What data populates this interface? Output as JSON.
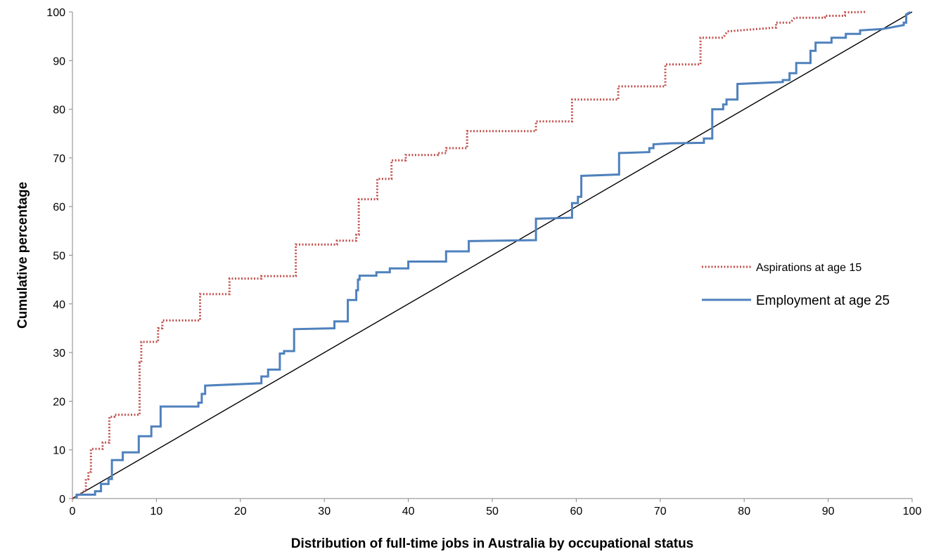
{
  "chart_data": {
    "type": "line",
    "xlabel": "Distribution of full-time jobs in Australia by occupational status",
    "ylabel": "Cumulative percentage",
    "xlim": [
      0,
      100
    ],
    "ylim": [
      0,
      100
    ],
    "x_ticks": [
      "0",
      "10",
      "20",
      "30",
      "40",
      "50",
      "60",
      "70",
      "80",
      "90",
      "100"
    ],
    "y_ticks": [
      "0",
      "10",
      "20",
      "30",
      "40",
      "50",
      "60",
      "70",
      "80",
      "90",
      "100"
    ],
    "legend_position": "right",
    "grid": false,
    "series": [
      {
        "name": "Aspirations at age 15",
        "color": "#c0504d",
        "style": "dotted",
        "points": [
          [
            0,
            0
          ],
          [
            1,
            1
          ],
          [
            1.6,
            1.8
          ],
          [
            1.6,
            4
          ],
          [
            1.9,
            4
          ],
          [
            1.9,
            5.5
          ],
          [
            2.2,
            5.5
          ],
          [
            2.2,
            10.2
          ],
          [
            3.6,
            10.2
          ],
          [
            3.6,
            11.5
          ],
          [
            4.4,
            11.5
          ],
          [
            4.4,
            16.8
          ],
          [
            5,
            16.8
          ],
          [
            5,
            17.2
          ],
          [
            8,
            17.2
          ],
          [
            8,
            28
          ],
          [
            8.2,
            28
          ],
          [
            8.2,
            32.2
          ],
          [
            10.2,
            32.2
          ],
          [
            10.2,
            35
          ],
          [
            10.7,
            35
          ],
          [
            10.7,
            36.6
          ],
          [
            15.2,
            36.6
          ],
          [
            15.2,
            42
          ],
          [
            18.7,
            42
          ],
          [
            18.7,
            45.2
          ],
          [
            22.5,
            45.2
          ],
          [
            22.5,
            45.7
          ],
          [
            26.6,
            45.7
          ],
          [
            26.6,
            52.2
          ],
          [
            31.5,
            52.2
          ],
          [
            31.5,
            53
          ],
          [
            33.8,
            53
          ],
          [
            33.8,
            54.2
          ],
          [
            34.1,
            54.2
          ],
          [
            34.1,
            61.5
          ],
          [
            36.3,
            61.5
          ],
          [
            36.3,
            65.7
          ],
          [
            38,
            65.7
          ],
          [
            38,
            69.5
          ],
          [
            39.7,
            69.5
          ],
          [
            39.7,
            70.6
          ],
          [
            43.5,
            70.6
          ],
          [
            43.5,
            71
          ],
          [
            44.5,
            71
          ],
          [
            44.5,
            72
          ],
          [
            47,
            72
          ],
          [
            47,
            75.5
          ],
          [
            55.2,
            75.5
          ],
          [
            55.2,
            77.5
          ],
          [
            59.5,
            77.5
          ],
          [
            59.5,
            82
          ],
          [
            65,
            82
          ],
          [
            65,
            84.7
          ],
          [
            70.6,
            84.7
          ],
          [
            70.6,
            89.2
          ],
          [
            74.8,
            89.2
          ],
          [
            74.8,
            94.7
          ],
          [
            77.5,
            94.7
          ],
          [
            78,
            96
          ],
          [
            83.8,
            96.8
          ],
          [
            83.8,
            97.8
          ],
          [
            85.5,
            97.8
          ],
          [
            86,
            98.8
          ],
          [
            89.6,
            98.8
          ],
          [
            89.6,
            99.2
          ],
          [
            92,
            99.2
          ],
          [
            92,
            99.9
          ],
          [
            94.4,
            100
          ]
        ]
      },
      {
        "name": "Employment at age 25",
        "color": "#4f81bd",
        "style": "solid",
        "points": [
          [
            0.5,
            0
          ],
          [
            0.5,
            0.8
          ],
          [
            2.7,
            0.8
          ],
          [
            2.7,
            1.5
          ],
          [
            3.4,
            1.5
          ],
          [
            3.4,
            3
          ],
          [
            4.3,
            3
          ],
          [
            4.3,
            4
          ],
          [
            4.7,
            4
          ],
          [
            4.7,
            7.9
          ],
          [
            6,
            7.9
          ],
          [
            6,
            9.5
          ],
          [
            7.9,
            9.5
          ],
          [
            7.9,
            12.8
          ],
          [
            9.4,
            12.8
          ],
          [
            9.4,
            14.8
          ],
          [
            10.5,
            14.8
          ],
          [
            10.5,
            18.9
          ],
          [
            15,
            18.9
          ],
          [
            15,
            19.7
          ],
          [
            15.4,
            19.7
          ],
          [
            15.4,
            21.5
          ],
          [
            15.8,
            21.5
          ],
          [
            15.8,
            23.2
          ],
          [
            22.5,
            23.7
          ],
          [
            22.5,
            25.1
          ],
          [
            23.3,
            25.1
          ],
          [
            23.3,
            26.5
          ],
          [
            24.7,
            26.5
          ],
          [
            24.7,
            29.8
          ],
          [
            25.2,
            29.8
          ],
          [
            25.2,
            30.3
          ],
          [
            26.4,
            30.3
          ],
          [
            26.4,
            34.8
          ],
          [
            31.2,
            35
          ],
          [
            31.2,
            36.4
          ],
          [
            32.8,
            36.4
          ],
          [
            32.8,
            40.8
          ],
          [
            33.8,
            40.8
          ],
          [
            33.8,
            42.8
          ],
          [
            34,
            42.8
          ],
          [
            34,
            45
          ],
          [
            34.2,
            45
          ],
          [
            34.2,
            45.8
          ],
          [
            36.2,
            45.8
          ],
          [
            36.2,
            46.5
          ],
          [
            37.8,
            46.5
          ],
          [
            37.8,
            47.3
          ],
          [
            40,
            47.3
          ],
          [
            40,
            48.7
          ],
          [
            44.5,
            48.7
          ],
          [
            44.5,
            50.8
          ],
          [
            47.2,
            50.8
          ],
          [
            47.2,
            52.9
          ],
          [
            55.2,
            53.1
          ],
          [
            55.2,
            57.5
          ],
          [
            59.5,
            57.7
          ],
          [
            59.5,
            60.7
          ],
          [
            60.2,
            60.7
          ],
          [
            60.2,
            62
          ],
          [
            60.6,
            62
          ],
          [
            60.6,
            66.3
          ],
          [
            65.1,
            66.6
          ],
          [
            65.1,
            71
          ],
          [
            68.7,
            71.2
          ],
          [
            68.7,
            72
          ],
          [
            69.2,
            72
          ],
          [
            69.2,
            72.8
          ],
          [
            71.2,
            73
          ],
          [
            75.2,
            73.1
          ],
          [
            75.2,
            74
          ],
          [
            76.2,
            74
          ],
          [
            76.2,
            80
          ],
          [
            77.5,
            80
          ],
          [
            77.5,
            81
          ],
          [
            77.9,
            81
          ],
          [
            77.9,
            82
          ],
          [
            79.2,
            82
          ],
          [
            79.2,
            85.2
          ],
          [
            84.6,
            85.6
          ],
          [
            84.6,
            86
          ],
          [
            85.4,
            86
          ],
          [
            85.4,
            87.4
          ],
          [
            86.2,
            87.4
          ],
          [
            86.2,
            89.5
          ],
          [
            87.9,
            89.5
          ],
          [
            87.9,
            92
          ],
          [
            88.5,
            92
          ],
          [
            88.5,
            93.7
          ],
          [
            90.4,
            93.7
          ],
          [
            90.4,
            94.7
          ],
          [
            92.1,
            94.7
          ],
          [
            92.1,
            95.5
          ],
          [
            93.8,
            95.5
          ],
          [
            93.8,
            96.2
          ],
          [
            96.5,
            96.5
          ],
          [
            99,
            97.3
          ],
          [
            99,
            97.8
          ],
          [
            99.3,
            97.8
          ],
          [
            99.3,
            99.5
          ],
          [
            99.8,
            100
          ]
        ]
      },
      {
        "name": "",
        "color": "#000000",
        "style": "solid",
        "points": [
          [
            0,
            0
          ],
          [
            100,
            100
          ]
        ]
      }
    ]
  }
}
